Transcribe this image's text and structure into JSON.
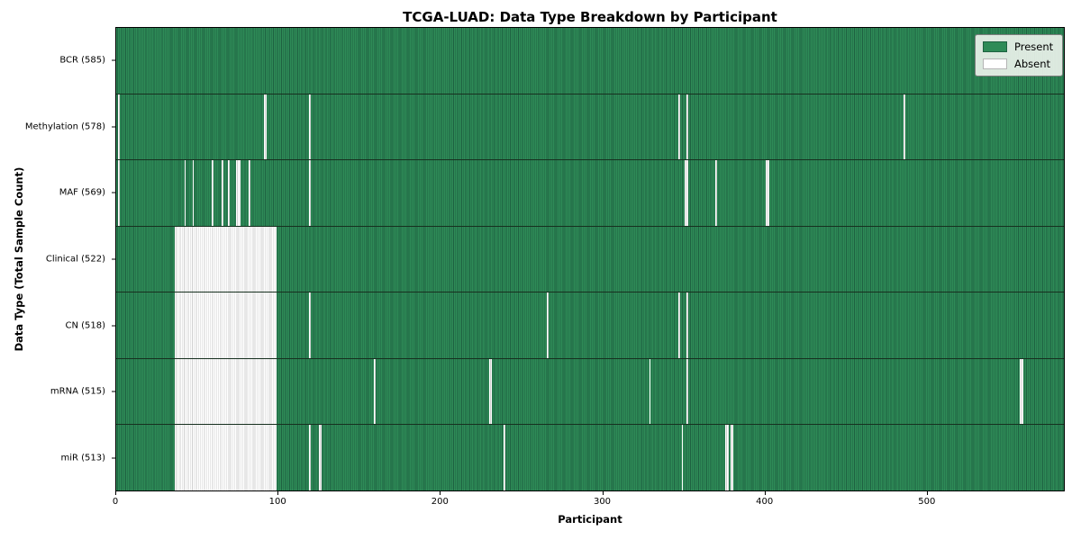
{
  "chart_data": {
    "type": "heatmap",
    "title": "TCGA-LUAD: Data Type Breakdown by Participant",
    "xlabel": "Participant",
    "ylabel": "Data Type (Total Sample Count)",
    "total_participants": 585,
    "x_ticks": [
      0,
      100,
      200,
      300,
      400,
      500
    ],
    "x_range": [
      0,
      585
    ],
    "grid": false,
    "colors": {
      "present": "#2e8b57",
      "present_edge": "#1e6141",
      "absent": "#ffffff",
      "absent_edge": "#cfcfcf"
    },
    "legend": {
      "position": "upper-right",
      "items": [
        {
          "label": "Present",
          "color": "#2e8b57"
        },
        {
          "label": "Absent",
          "color": "#ffffff"
        }
      ]
    },
    "rows": [
      {
        "label": "BCR (585)",
        "data_type": "BCR",
        "present_count": 585,
        "absent_ranges": []
      },
      {
        "label": "Methylation (578)",
        "data_type": "Methylation",
        "present_count": 578,
        "absent_ranges": [
          [
            1,
            1
          ],
          [
            91,
            92
          ],
          [
            119,
            119
          ],
          [
            347,
            347
          ],
          [
            352,
            352
          ],
          [
            486,
            486
          ]
        ]
      },
      {
        "label": "MAF (569)",
        "data_type": "MAF",
        "present_count": 569,
        "absent_ranges": [
          [
            1,
            1
          ],
          [
            42,
            42
          ],
          [
            47,
            47
          ],
          [
            59,
            59
          ],
          [
            65,
            65
          ],
          [
            69,
            69
          ],
          [
            74,
            76
          ],
          [
            82,
            82
          ],
          [
            119,
            119
          ],
          [
            351,
            352
          ],
          [
            370,
            370
          ],
          [
            401,
            402
          ]
        ]
      },
      {
        "label": "Clinical (522)",
        "data_type": "Clinical",
        "present_count": 522,
        "absent_ranges": [
          [
            36,
            98
          ]
        ]
      },
      {
        "label": "CN (518)",
        "data_type": "CN",
        "present_count": 518,
        "absent_ranges": [
          [
            36,
            98
          ],
          [
            119,
            119
          ],
          [
            266,
            266
          ],
          [
            347,
            347
          ],
          [
            352,
            352
          ]
        ]
      },
      {
        "label": "mRNA (515)",
        "data_type": "mRNA",
        "present_count": 515,
        "absent_ranges": [
          [
            36,
            98
          ],
          [
            159,
            159
          ],
          [
            230,
            231
          ],
          [
            329,
            329
          ],
          [
            352,
            352
          ],
          [
            558,
            559
          ]
        ]
      },
      {
        "label": "miR (513)",
        "data_type": "miR",
        "present_count": 513,
        "absent_ranges": [
          [
            36,
            98
          ],
          [
            119,
            119
          ],
          [
            125,
            126
          ],
          [
            239,
            239
          ],
          [
            349,
            349
          ],
          [
            376,
            377
          ],
          [
            379,
            380
          ]
        ]
      }
    ]
  }
}
